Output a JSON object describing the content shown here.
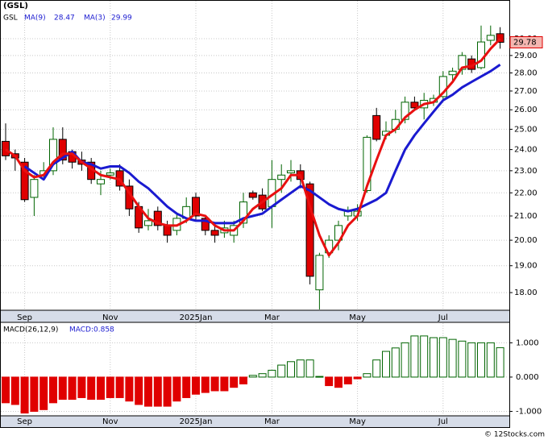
{
  "chart_data": [
    {
      "type": "candlestick",
      "title": "(GSL)",
      "ticker": "GSL",
      "categories": [
        null,
        null,
        "Sep",
        null,
        null,
        null,
        null,
        null,
        null,
        null,
        null,
        "Nov",
        null,
        null,
        null,
        null,
        null,
        null,
        null,
        null,
        "2025Jan",
        null,
        null,
        null,
        null,
        null,
        null,
        null,
        "Mar",
        null,
        null,
        null,
        null,
        null,
        null,
        null,
        null,
        "May",
        null,
        null,
        null,
        null,
        null,
        null,
        null,
        null,
        "Jul",
        null,
        null,
        null,
        null,
        null,
        null
      ],
      "open": [
        24.4,
        23.8,
        23.4,
        21.8,
        22.8,
        23.0,
        24.5,
        23.9,
        23.5,
        23.4,
        22.4,
        22.8,
        23.0,
        22.3,
        21.4,
        20.6,
        21.2,
        20.6,
        20.4,
        20.9,
        21.8,
        20.9,
        20.4,
        20.3,
        20.2,
        20.7,
        22.0,
        21.9,
        21.4,
        22.6,
        22.9,
        23.0,
        22.4,
        18.1,
        19.5,
        20.0,
        21.0,
        21.0,
        22.1,
        25.7,
        24.7,
        25.0,
        25.5,
        26.4,
        26.1,
        26.4,
        26.7,
        27.9,
        28.2,
        28.8,
        28.3,
        29.9,
        30.3
      ],
      "high": [
        25.3,
        24.0,
        23.6,
        22.8,
        23.4,
        25.1,
        25.1,
        24.0,
        23.9,
        23.6,
        23.0,
        23.1,
        23.3,
        22.6,
        21.6,
        21.3,
        21.4,
        20.8,
        21.1,
        21.8,
        22.0,
        21.0,
        20.6,
        20.8,
        20.8,
        22.0,
        22.1,
        22.2,
        23.5,
        23.3,
        23.5,
        23.3,
        22.5,
        19.5,
        20.2,
        20.8,
        21.4,
        21.5,
        24.7,
        26.1,
        25.4,
        26.0,
        26.7,
        26.7,
        26.9,
        26.8,
        28.1,
        28.3,
        29.2,
        29.0,
        30.8,
        30.8,
        30.7
      ],
      "low": [
        23.5,
        23.0,
        21.6,
        21.0,
        22.6,
        22.8,
        23.3,
        23.1,
        23.0,
        22.4,
        21.9,
        22.6,
        22.1,
        21.0,
        20.3,
        20.4,
        20.4,
        19.9,
        20.2,
        20.7,
        20.8,
        20.2,
        19.9,
        20.1,
        19.9,
        20.5,
        21.7,
        21.2,
        20.5,
        22.0,
        22.5,
        22.2,
        18.3,
        17.4,
        19.3,
        19.6,
        20.8,
        20.8,
        22.0,
        24.4,
        24.5,
        24.8,
        25.3,
        26.0,
        25.5,
        26.2,
        26.5,
        27.5,
        27.9,
        28.0,
        28.2,
        29.6,
        29.4
      ],
      "close": [
        23.7,
        23.6,
        21.7,
        22.6,
        23.0,
        24.5,
        23.5,
        23.4,
        23.3,
        22.6,
        22.6,
        22.9,
        22.3,
        21.3,
        20.5,
        20.8,
        20.6,
        20.2,
        20.9,
        21.4,
        21.0,
        20.4,
        20.2,
        20.5,
        20.6,
        21.6,
        21.8,
        21.3,
        22.6,
        22.8,
        23.0,
        22.6,
        18.6,
        19.4,
        20.0,
        20.6,
        21.2,
        21.2,
        24.6,
        24.5,
        24.9,
        25.5,
        26.4,
        26.1,
        26.5,
        26.6,
        27.8,
        28.1,
        29.0,
        28.2,
        29.8,
        30.2,
        29.78
      ],
      "last_value": 29.78,
      "up_color": "#006400",
      "down_color": "#e00000",
      "series": [
        {
          "name": "MA(9)",
          "color": "#1a1ad0",
          "legend_value": 28.47,
          "values": [
            null,
            null,
            23.2,
            22.9,
            22.6,
            23.3,
            23.6,
            23.9,
            23.4,
            23.3,
            23.1,
            23.2,
            23.2,
            22.9,
            22.5,
            22.2,
            21.8,
            21.4,
            21.1,
            20.9,
            20.8,
            20.8,
            20.7,
            20.7,
            20.7,
            20.9,
            21.0,
            21.1,
            21.4,
            21.7,
            22.0,
            22.3,
            22.1,
            21.8,
            21.5,
            21.3,
            21.2,
            21.3,
            21.5,
            21.7,
            22.0,
            23.0,
            24.0,
            24.7,
            25.3,
            25.9,
            26.5,
            26.8,
            27.2,
            27.5,
            27.8,
            28.1,
            28.47
          ]
        },
        {
          "name": "MA(3)",
          "color": "#e81010",
          "legend_value": 29.99,
          "values": [
            24.0,
            23.7,
            23.0,
            22.7,
            22.8,
            23.4,
            23.8,
            23.8,
            23.4,
            23.1,
            22.8,
            22.7,
            22.6,
            22.0,
            21.4,
            20.9,
            20.7,
            20.6,
            20.6,
            20.8,
            21.1,
            21.0,
            20.6,
            20.4,
            20.4,
            20.8,
            21.3,
            21.6,
            21.9,
            22.2,
            22.8,
            22.8,
            21.4,
            20.2,
            19.4,
            19.9,
            20.6,
            21.0,
            22.3,
            23.5,
            24.7,
            25.0,
            25.6,
            26.0,
            26.3,
            26.4,
            26.9,
            27.5,
            28.3,
            28.4,
            28.7,
            29.4,
            29.99
          ]
        }
      ],
      "log_scale": true,
      "grid": true,
      "ylim": [
        17.4,
        31.8
      ],
      "yticks": [
        {
          "value": 18,
          "label": "18.00"
        },
        {
          "value": 19,
          "label": "19.00"
        },
        {
          "value": 20,
          "label": "20.00"
        },
        {
          "value": 21,
          "label": "21.00"
        },
        {
          "value": 22,
          "label": "22.00"
        },
        {
          "value": 23,
          "label": "23.00"
        },
        {
          "value": 24,
          "label": "24.00"
        },
        {
          "value": 25,
          "label": "25.00"
        },
        {
          "value": 26,
          "label": "26.00"
        },
        {
          "value": 27,
          "label": "27.00"
        },
        {
          "value": 28,
          "label": "28.00"
        },
        {
          "value": 29,
          "label": "29.00"
        },
        {
          "value": 30,
          "label": "30.00"
        }
      ]
    },
    {
      "type": "bar",
      "title": "MACD(26,12,9)",
      "value_name": "MACD:",
      "value": 0.858,
      "up_color": "#006400",
      "down_color": "#e00000",
      "values": [
        -0.75,
        -0.8,
        -1.05,
        -1.0,
        -0.95,
        -0.75,
        -0.65,
        -0.65,
        -0.6,
        -0.65,
        -0.65,
        -0.6,
        -0.6,
        -0.7,
        -0.8,
        -0.85,
        -0.85,
        -0.85,
        -0.7,
        -0.6,
        -0.5,
        -0.45,
        -0.4,
        -0.4,
        -0.3,
        -0.2,
        0.05,
        0.1,
        0.2,
        0.35,
        0.45,
        0.5,
        0.5,
        0.02,
        -0.25,
        -0.3,
        -0.2,
        -0.05,
        0.1,
        0.5,
        0.75,
        0.85,
        1.0,
        1.2,
        1.2,
        1.15,
        1.15,
        1.1,
        1.05,
        1.0,
        1.0,
        1.0,
        0.858
      ],
      "ylim": [
        -1.13,
        1.55
      ],
      "yticks": [
        {
          "value": -1,
          "label": "-1.000"
        },
        {
          "value": 0,
          "label": "0.000"
        },
        {
          "value": 1,
          "label": "1.000"
        }
      ]
    },
    {
      "type": "footer",
      "title": "© 12Stocks.com"
    }
  ]
}
